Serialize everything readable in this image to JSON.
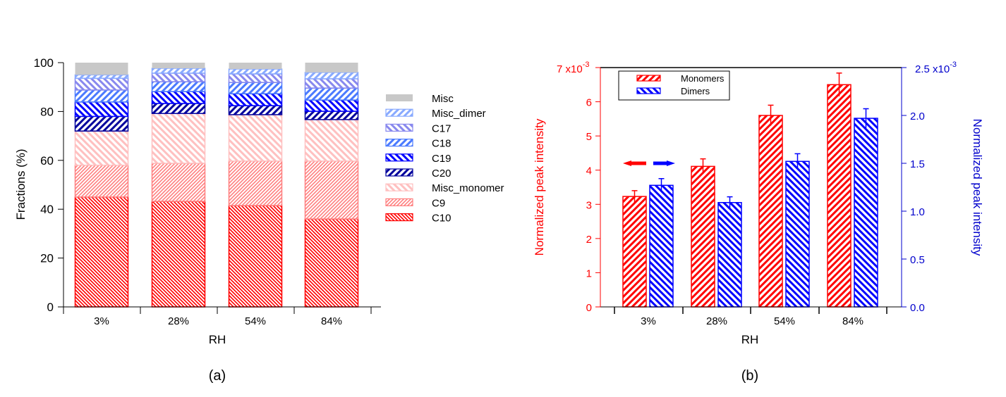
{
  "chart_data": [
    {
      "id": "panel-a",
      "type": "bar",
      "stacked": true,
      "panel_label": "(a)",
      "title": "",
      "xlabel": "RH",
      "ylabel": "Fractions (%)",
      "categories": [
        "3%",
        "28%",
        "54%",
        "84%"
      ],
      "ylim": [
        0,
        100
      ],
      "yticks": [
        0,
        20,
        40,
        60,
        80,
        100
      ],
      "legend_position": "right",
      "grid": false,
      "series": [
        {
          "name": "C10",
          "color": "#ff0000",
          "pattern": "dense-backslash",
          "values": [
            45.0,
            43.2,
            41.5,
            36.0
          ]
        },
        {
          "name": "C9",
          "color": "#ff8080",
          "pattern": "dense-slash",
          "values": [
            13.0,
            15.6,
            18.2,
            23.7
          ]
        },
        {
          "name": "Misc_monomer",
          "color": "#ffc0c0",
          "pattern": "backslash",
          "values": [
            14.0,
            20.4,
            19.0,
            17.0
          ]
        },
        {
          "name": "C20",
          "color": "#00009c",
          "pattern": "slash",
          "values": [
            6.0,
            4.1,
            3.7,
            3.4
          ]
        },
        {
          "name": "C19",
          "color": "#0000ff",
          "pattern": "backslash",
          "values": [
            5.9,
            4.9,
            4.9,
            4.6
          ]
        },
        {
          "name": "C18",
          "color": "#4a7aff",
          "pattern": "slash",
          "values": [
            4.9,
            4.0,
            4.6,
            4.9
          ]
        },
        {
          "name": "C17",
          "color": "#8888ee",
          "pattern": "backslash",
          "values": [
            4.8,
            3.5,
            3.5,
            3.8
          ]
        },
        {
          "name": "Misc_dimer",
          "color": "#88aaff",
          "pattern": "slash",
          "values": [
            1.4,
            2.0,
            2.0,
            2.6
          ]
        },
        {
          "name": "Misc",
          "color": "#c8c8c8",
          "pattern": "solid",
          "values": [
            5.0,
            2.3,
            2.6,
            4.0
          ]
        }
      ],
      "legend_order": [
        "Misc",
        "Misc_dimer",
        "C17",
        "C18",
        "C19",
        "C20",
        "Misc_monomer",
        "C9",
        "C10"
      ]
    },
    {
      "id": "panel-b",
      "type": "bar",
      "grouped": true,
      "panel_label": "(b)",
      "title": "",
      "xlabel": "RH",
      "ylabel": "Normalized peak intensity",
      "y2label": "Normalized peak intensity",
      "categories": [
        "3%",
        "28%",
        "54%",
        "84%"
      ],
      "ylim": [
        0,
        7
      ],
      "yticks": [
        0,
        1,
        2,
        3,
        4,
        5,
        6,
        7
      ],
      "y_multiplier_label": "x10",
      "y_multiplier_exp": "-3",
      "y2lim": [
        0,
        2.5
      ],
      "y2ticks": [
        "0.0",
        "0.5",
        "1.0",
        "1.5",
        "2.0",
        "2.5"
      ],
      "y2_multiplier_label": "x10",
      "y2_multiplier_exp": "-3",
      "left_axis_color": "#ff0000",
      "right_axis_color": "#0000cc",
      "legend_position": "top-left",
      "grid": false,
      "series": [
        {
          "name": "Monomers",
          "axis": "left",
          "color": "#ff0000",
          "pattern": "slash",
          "values": [
            3.23,
            4.11,
            5.6,
            6.5
          ],
          "errors": [
            0.17,
            0.22,
            0.3,
            0.34
          ],
          "unit_scale": "1e-3"
        },
        {
          "name": "Dimers",
          "axis": "right",
          "color": "#0000ff",
          "pattern": "backslash",
          "values": [
            1.27,
            1.09,
            1.52,
            1.97
          ],
          "errors": [
            0.07,
            0.06,
            0.08,
            0.1
          ],
          "unit_scale": "1e-3"
        }
      ],
      "annotations": [
        {
          "type": "arrow",
          "direction": "left",
          "color": "#ff0000",
          "meaning": "left-axis"
        },
        {
          "type": "arrow",
          "direction": "right",
          "color": "#0000ff",
          "meaning": "right-axis"
        }
      ]
    }
  ]
}
